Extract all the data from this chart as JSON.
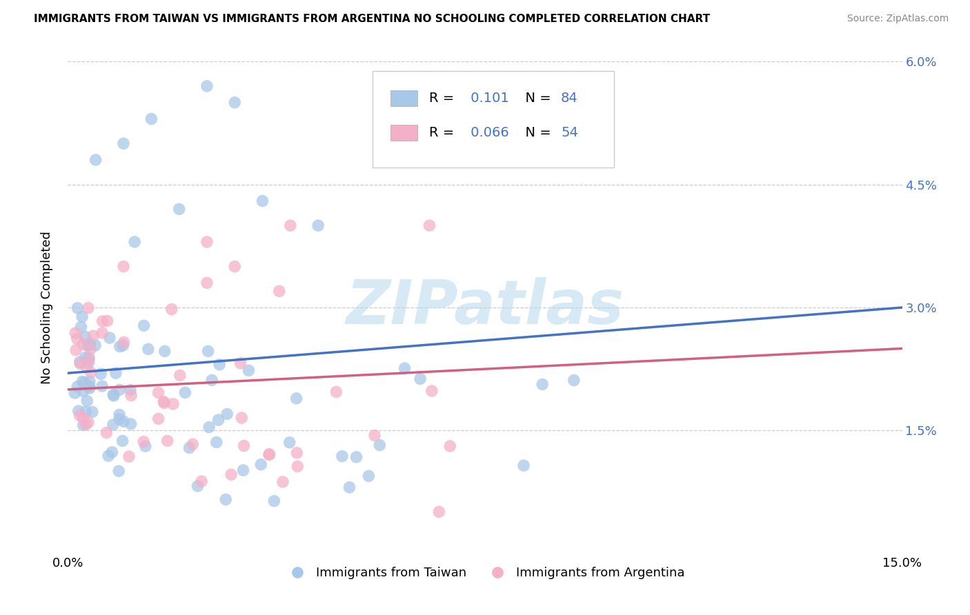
{
  "title": "IMMIGRANTS FROM TAIWAN VS IMMIGRANTS FROM ARGENTINA NO SCHOOLING COMPLETED CORRELATION CHART",
  "source": "Source: ZipAtlas.com",
  "ylabel": "No Schooling Completed",
  "xlim": [
    0.0,
    0.15
  ],
  "ylim": [
    0.0,
    0.06
  ],
  "xtick_vals": [
    0.0,
    0.15
  ],
  "xtick_labels": [
    "0.0%",
    "15.0%"
  ],
  "ytick_vals": [
    0.015,
    0.03,
    0.045,
    0.06
  ],
  "ytick_labels": [
    "1.5%",
    "3.0%",
    "4.5%",
    "6.0%"
  ],
  "taiwan_color": "#a8c8e8",
  "argentina_color": "#f4b0c8",
  "taiwan_line_color": "#4472c4",
  "argentina_line_color": "#d46080",
  "taiwan_R": 0.101,
  "taiwan_N": 84,
  "argentina_R": 0.066,
  "argentina_N": 54,
  "taiwan_legend_label": "Immigrants from Taiwan",
  "argentina_legend_label": "Immigrants from Argentina",
  "legend_text_color": "#4472c4",
  "taiwan_line_y0": 0.022,
  "taiwan_line_y1": 0.03,
  "argentina_line_y0": 0.02,
  "argentina_line_y1": 0.025
}
